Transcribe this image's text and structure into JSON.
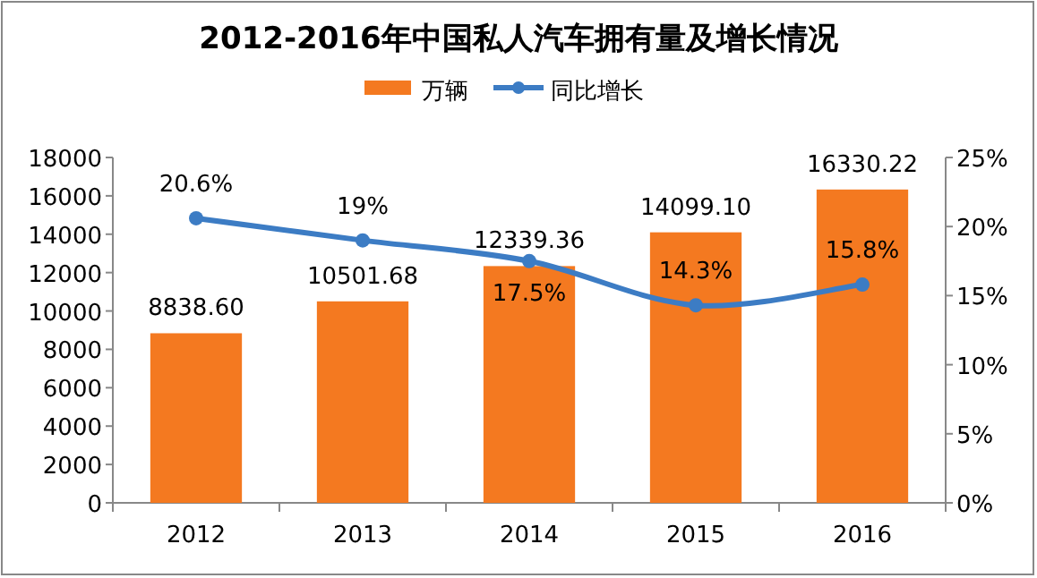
{
  "chart_data": {
    "type": "bar",
    "title": "2012-2016年中国私人汽车拥有量及增长情况",
    "categories": [
      "2012",
      "2013",
      "2014",
      "2015",
      "2016"
    ],
    "series": [
      {
        "name": "万辆",
        "color": "#f47920",
        "values": [
          8838.6,
          10501.68,
          12339.36,
          14099.1,
          16330.22
        ],
        "value_labels": [
          "8838.60",
          "10501.68",
          "12339.36",
          "14099.10",
          "16330.22"
        ]
      },
      {
        "name": "同比增长",
        "type": "line",
        "axis": "y2",
        "color": "#3c7cc4",
        "marker": "circle",
        "values": [
          20.6,
          19,
          17.5,
          14.3,
          15.8
        ],
        "value_labels": [
          "20.6%",
          "19%",
          "17.5%",
          "14.3%",
          "15.8%"
        ]
      }
    ],
    "ylim": [
      0,
      18000
    ],
    "yticks": [
      0,
      2000,
      4000,
      6000,
      8000,
      10000,
      12000,
      14000,
      16000,
      18000
    ],
    "y2lim": [
      0,
      25
    ],
    "y2ticks": [
      {
        "value": 0,
        "label": "0%"
      },
      {
        "value": 5,
        "label": "5%"
      },
      {
        "value": 10,
        "label": "10%"
      },
      {
        "value": 15,
        "label": "15%"
      },
      {
        "value": 20,
        "label": "20%"
      },
      {
        "value": 25,
        "label": "25%"
      }
    ],
    "legend": "top"
  }
}
